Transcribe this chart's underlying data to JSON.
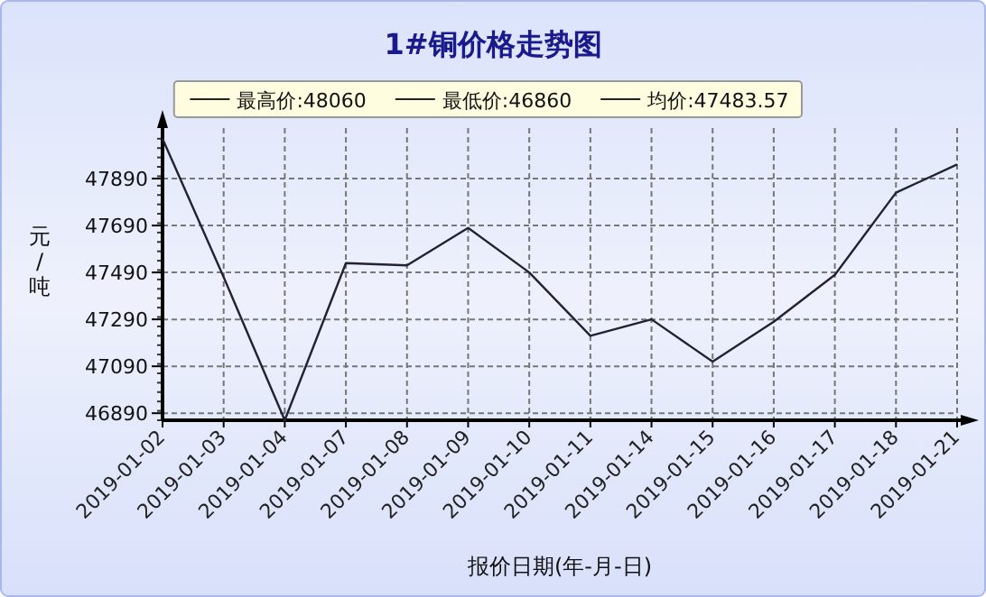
{
  "chart_data": {
    "type": "line",
    "title": "1#铜价格走势图",
    "xlabel": "报价日期(年-月-日)",
    "ylabel": "元/吨",
    "annotations": [
      "最高价:48060",
      "最低价:46860",
      "均价:47483.57"
    ],
    "categories": [
      "2019-01-02",
      "2019-01-03",
      "2019-01-04",
      "2019-01-07",
      "2019-01-08",
      "2019-01-09",
      "2019-01-10",
      "2019-01-11",
      "2019-01-14",
      "2019-01-15",
      "2019-01-16",
      "2019-01-17",
      "2019-01-18",
      "2019-01-21"
    ],
    "series": [
      {
        "color": "#222233",
        "values": [
          48060,
          47470,
          46860,
          47530,
          47520,
          47680,
          47490,
          47220,
          47290,
          47110,
          47280,
          47480,
          47830,
          47950
        ]
      }
    ],
    "ylim": [
      46860,
      48090
    ],
    "yticks": [
      46890,
      47090,
      47290,
      47490,
      47690,
      47890
    ],
    "grid": true,
    "line_style": "solid",
    "marker": "none"
  }
}
